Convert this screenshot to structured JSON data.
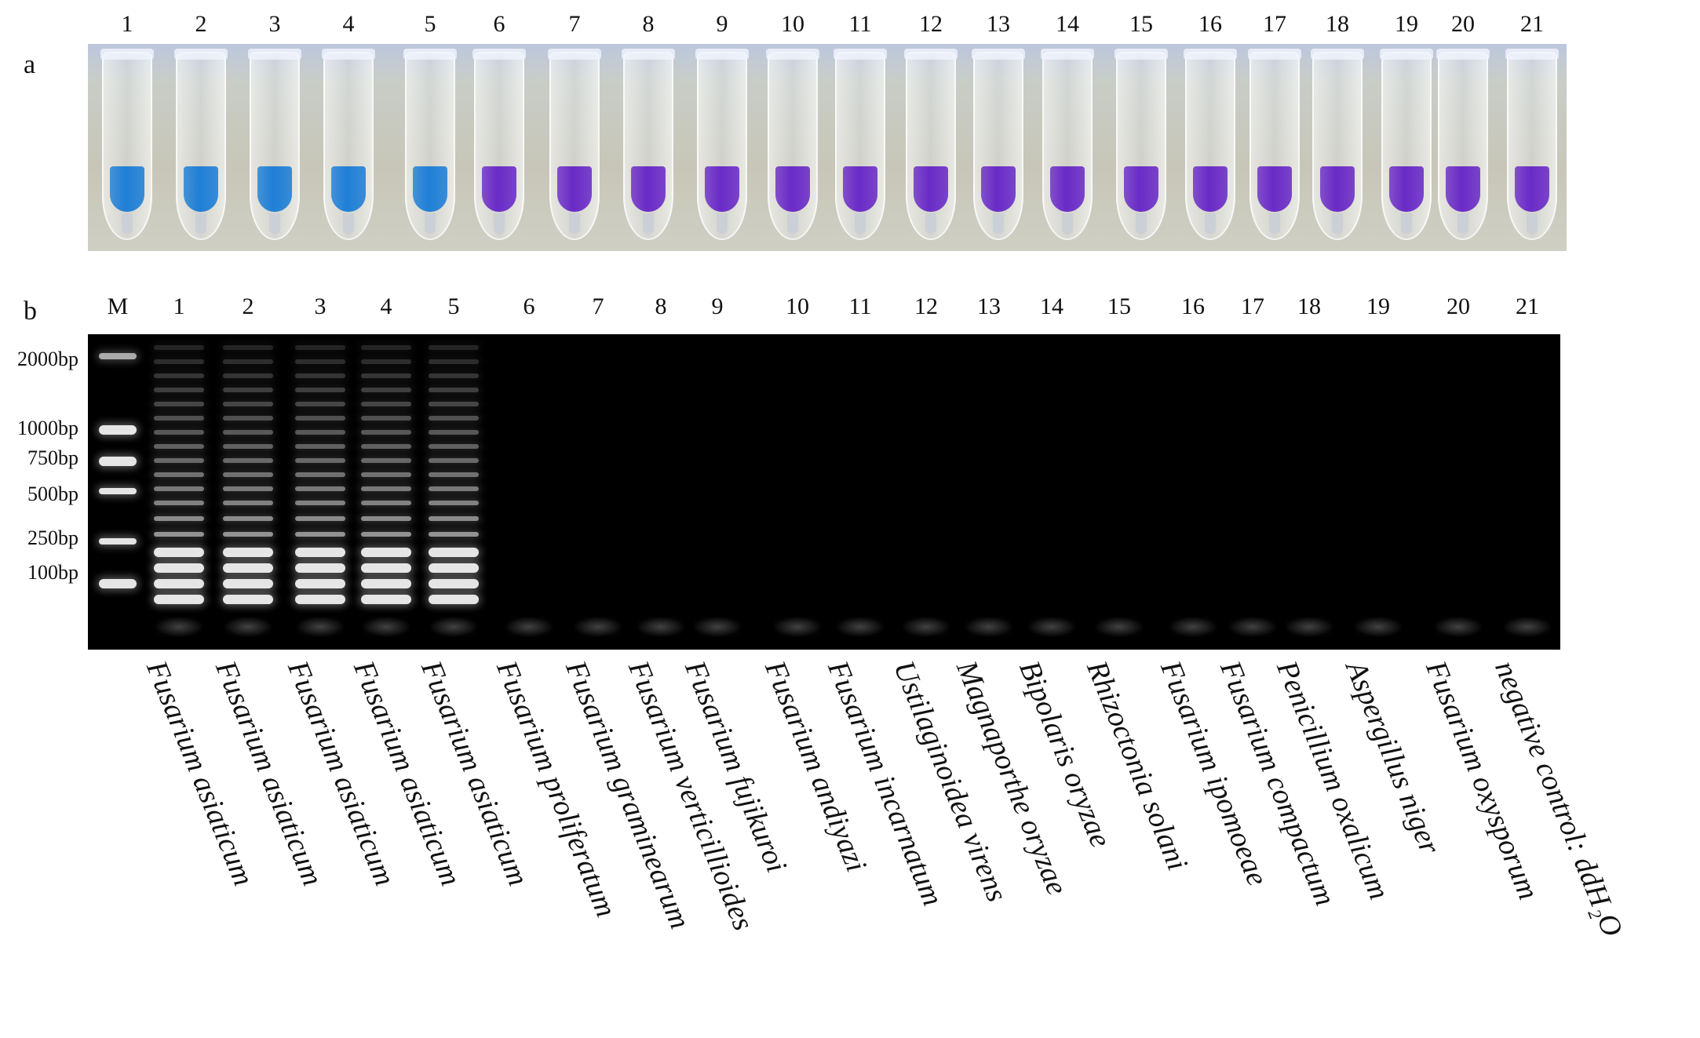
{
  "panel_a_label": "a",
  "panel_b_label": "b",
  "lane_numbers": [
    "1",
    "2",
    "3",
    "4",
    "5",
    "6",
    "7",
    "8",
    "9",
    "10",
    "11",
    "12",
    "13",
    "14",
    "15",
    "16",
    "17",
    "18",
    "19",
    "20",
    "21"
  ],
  "marker_lane_label": "M",
  "marker_sizes": [
    "2000bp",
    "1000bp",
    "750bp",
    "500bp",
    "250bp",
    "100bp"
  ],
  "tube_colors": [
    "blue",
    "blue",
    "blue",
    "blue",
    "blue",
    "violet",
    "violet",
    "violet",
    "violet",
    "violet",
    "violet",
    "violet",
    "violet",
    "violet",
    "violet",
    "violet",
    "violet",
    "violet",
    "violet",
    "violet",
    "violet"
  ],
  "colors": {
    "blue": "#1f7fd6",
    "violet": "#6a2bc7"
  },
  "positive_lanes": [
    1,
    2,
    3,
    4,
    5
  ],
  "strains": [
    "Fusarium asiaticum",
    "Fusarium asiaticum",
    "Fusarium asiaticum",
    "Fusarium asiaticum",
    "Fusarium asiaticum",
    "Fusarium proliferatum",
    "Fusarium graminearum",
    "Fusarium verticillioides",
    "Fusarium fujikuroi",
    "Fusarium andiyazi",
    "Fusarium incarnatum",
    "Ustilaginoidea virens",
    "Magnaporthe oryzae",
    "Bipolaris oryzae",
    "Rhizoctonia solani",
    "Fusarium ipomoeae",
    "Fusarium compactum",
    "Penicillium oxalicum",
    "Aspergillus niger",
    "Fusarium oxysporum",
    "negative control: ddH₂O"
  ]
}
